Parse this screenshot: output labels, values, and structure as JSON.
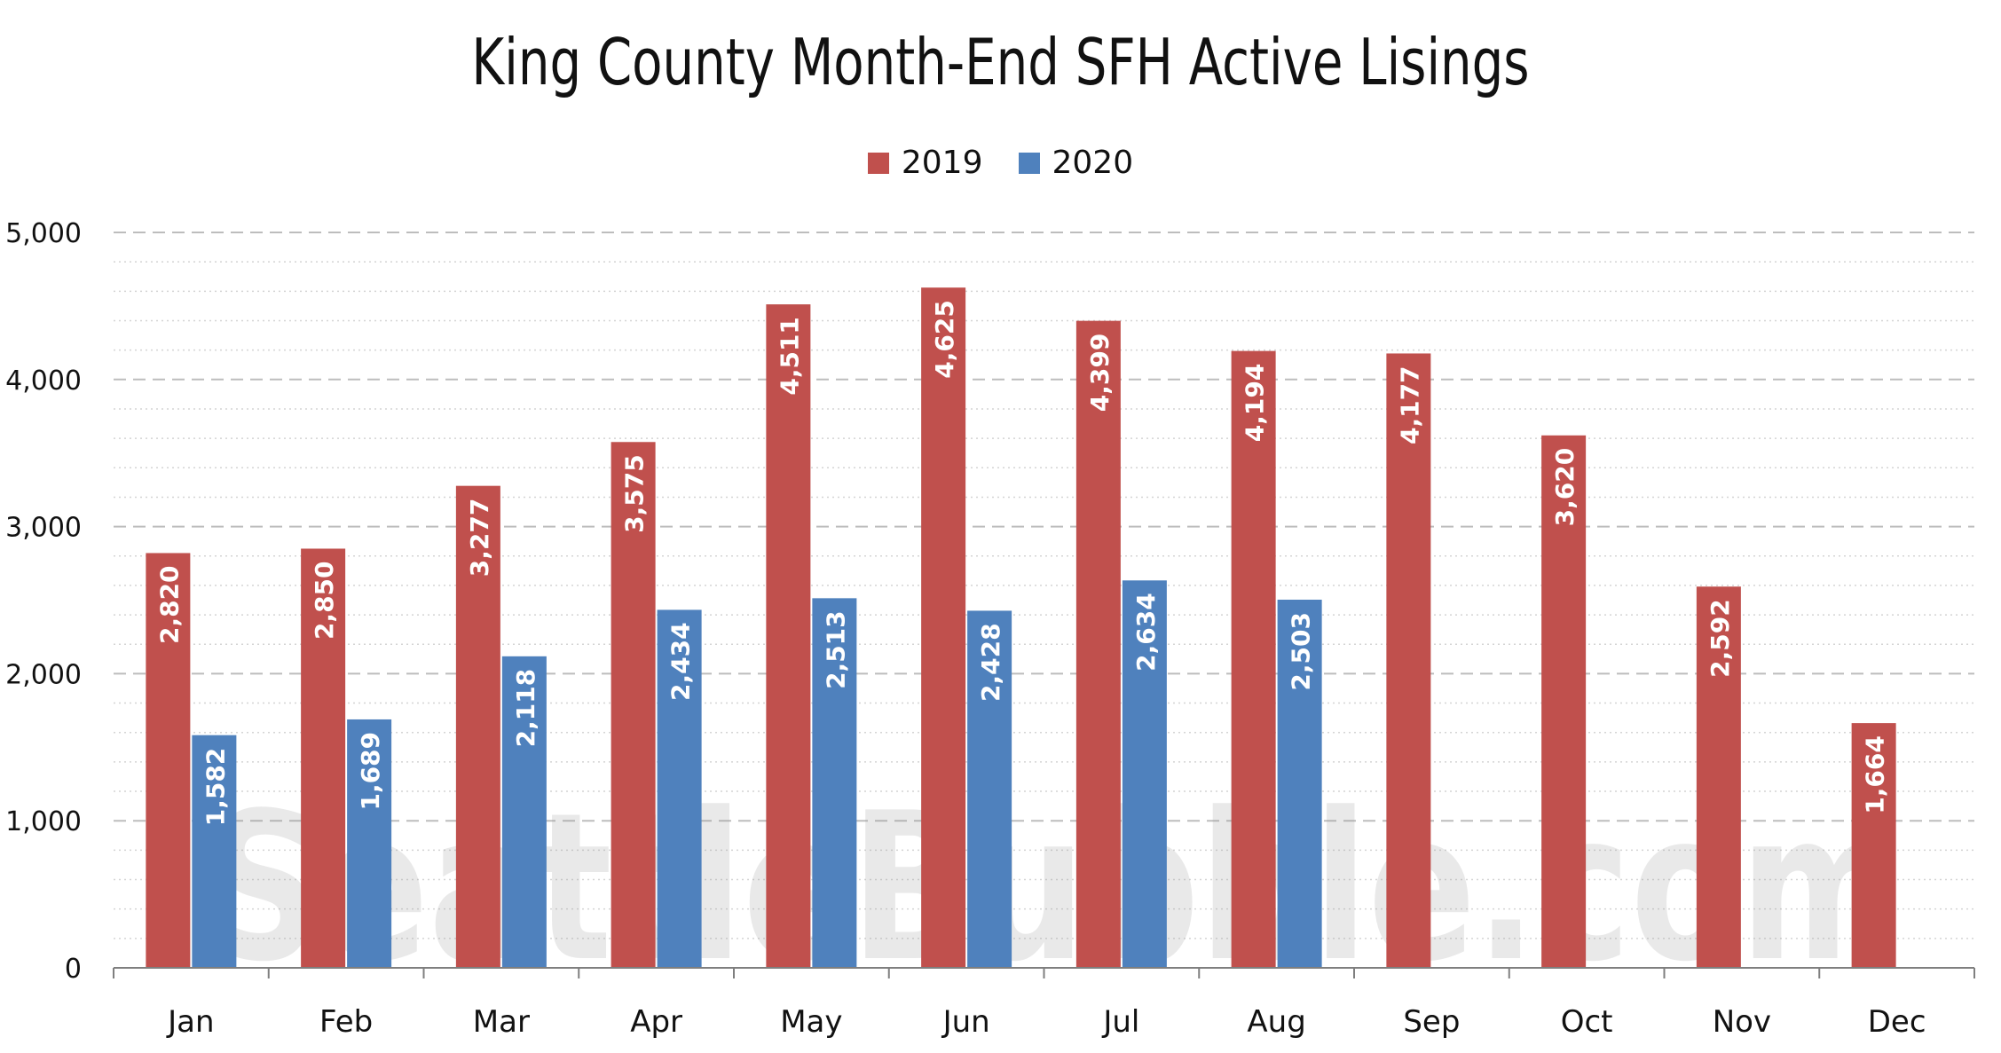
{
  "title": "King County Month-End SFH Active Lisings",
  "watermark": "SeattleBubble.com",
  "chart_data": {
    "type": "bar",
    "title": "King County Month-End SFH Active Lisings",
    "xlabel": "",
    "ylabel": "",
    "categories": [
      "Jan",
      "Feb",
      "Mar",
      "Apr",
      "May",
      "Jun",
      "Jul",
      "Aug",
      "Sep",
      "Oct",
      "Nov",
      "Dec"
    ],
    "series": [
      {
        "name": "2019",
        "color": "#C0504D",
        "values": [
          2820,
          2850,
          3277,
          3575,
          4511,
          4625,
          4399,
          4194,
          4177,
          3620,
          2592,
          1664
        ],
        "labels": [
          "2,820",
          "2,850",
          "3,277",
          "3,575",
          "4,511",
          "4,625",
          "4,399",
          "4,194",
          "4,177",
          "3,620",
          "2,592",
          "1,664"
        ]
      },
      {
        "name": "2020",
        "color": "#4F81BD",
        "values": [
          1582,
          1689,
          2118,
          2434,
          2513,
          2428,
          2634,
          2503,
          null,
          null,
          null,
          null
        ],
        "labels": [
          "1,582",
          "1,689",
          "2,118",
          "2,434",
          "2,513",
          "2,428",
          "2,634",
          "2,503",
          "",
          "",
          "",
          ""
        ]
      }
    ],
    "ylim": [
      0,
      5000
    ],
    "yticks": [
      0,
      1000,
      2000,
      3000,
      4000,
      5000
    ],
    "ytick_labels": [
      "0",
      "1,000",
      "2,000",
      "3,000",
      "4,000",
      "5,000"
    ],
    "grid": true,
    "legend_position": "top-center"
  }
}
